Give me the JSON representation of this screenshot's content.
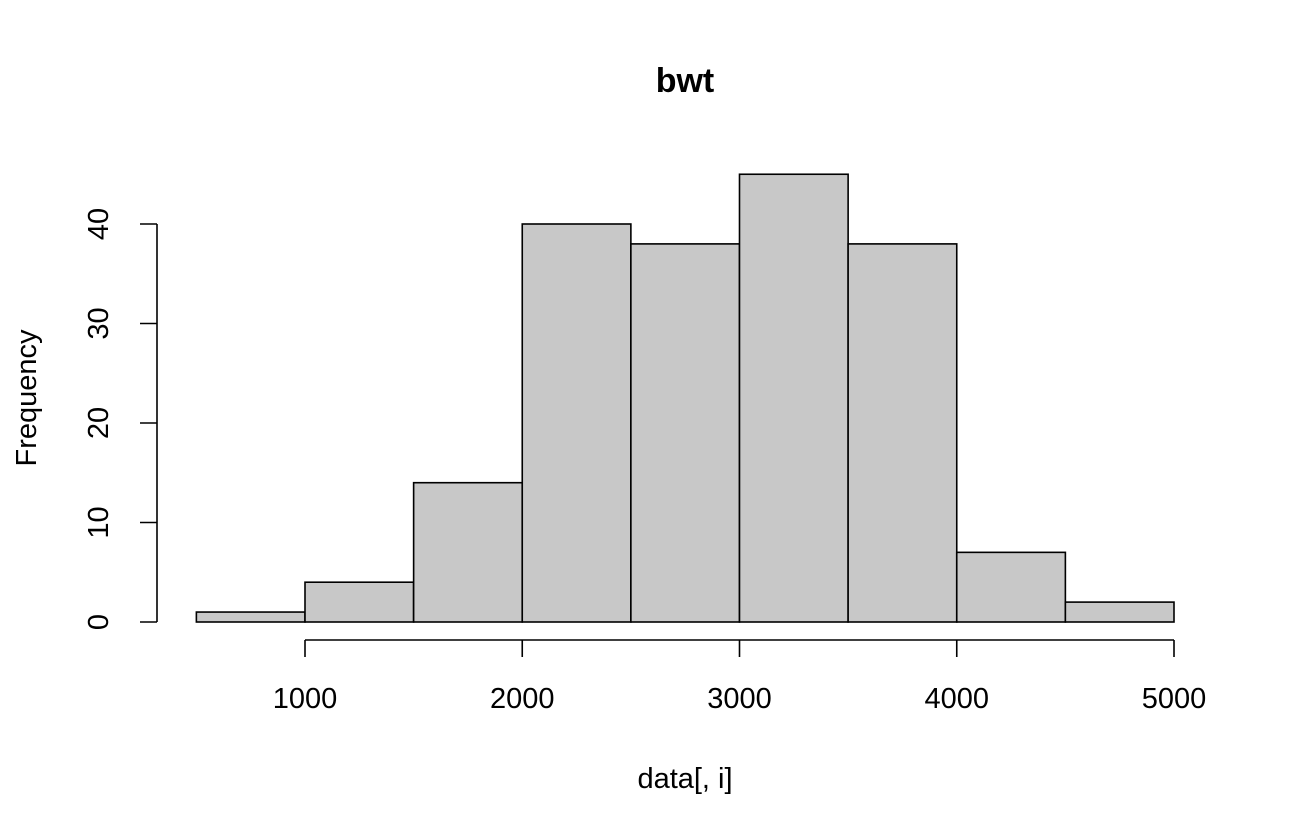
{
  "chart_data": {
    "type": "bar",
    "subtype": "histogram",
    "title": "bwt",
    "xlabel": "data[, i]",
    "ylabel": "Frequency",
    "bins": [
      {
        "start": 500,
        "end": 1000,
        "count": 1
      },
      {
        "start": 1000,
        "end": 1500,
        "count": 4
      },
      {
        "start": 1500,
        "end": 2000,
        "count": 14
      },
      {
        "start": 2000,
        "end": 2500,
        "count": 40
      },
      {
        "start": 2500,
        "end": 3000,
        "count": 38
      },
      {
        "start": 3000,
        "end": 3500,
        "count": 45
      },
      {
        "start": 3500,
        "end": 4000,
        "count": 38
      },
      {
        "start": 4000,
        "end": 4500,
        "count": 7
      },
      {
        "start": 4500,
        "end": 5000,
        "count": 2
      }
    ],
    "x_ticks": [
      "1000",
      "2000",
      "3000",
      "4000",
      "5000"
    ],
    "y_ticks": [
      "0",
      "10",
      "20",
      "30",
      "40"
    ],
    "xlim": [
      500,
      5000
    ],
    "ylim": [
      0,
      45
    ],
    "grid": false,
    "legend": "none",
    "bar_fill": "#c8c8c8",
    "bar_stroke": "#000000"
  }
}
